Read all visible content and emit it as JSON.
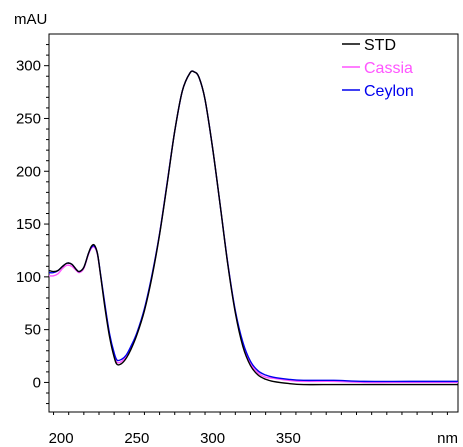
{
  "chart_data": {
    "type": "line",
    "title": "",
    "xlabel": "nm",
    "ylabel": "mAU",
    "xlim": [
      192,
      462
    ],
    "ylim": [
      -28,
      330
    ],
    "x_ticks": [
      200,
      250,
      300,
      350
    ],
    "y_ticks": [
      0,
      50,
      100,
      150,
      200,
      250,
      300
    ],
    "legend_position": "top-right",
    "grid": false,
    "series": [
      {
        "name": "STD",
        "color": "#000000",
        "points": [
          [
            192,
            106
          ],
          [
            195,
            105
          ],
          [
            198,
            106
          ],
          [
            201,
            110
          ],
          [
            204,
            113
          ],
          [
            207,
            112
          ],
          [
            210,
            107
          ],
          [
            212,
            105
          ],
          [
            215,
            109
          ],
          [
            218,
            122
          ],
          [
            220,
            129
          ],
          [
            222,
            130
          ],
          [
            224,
            122
          ],
          [
            226,
            102
          ],
          [
            229,
            70
          ],
          [
            232,
            43
          ],
          [
            235,
            24
          ],
          [
            237,
            17
          ],
          [
            240,
            18
          ],
          [
            243,
            23
          ],
          [
            246,
            31
          ],
          [
            250,
            45
          ],
          [
            255,
            68
          ],
          [
            260,
            100
          ],
          [
            265,
            140
          ],
          [
            270,
            188
          ],
          [
            275,
            238
          ],
          [
            280,
            276
          ],
          [
            285,
            293
          ],
          [
            288,
            294
          ],
          [
            291,
            289
          ],
          [
            295,
            268
          ],
          [
            300,
            222
          ],
          [
            305,
            168
          ],
          [
            310,
            112
          ],
          [
            315,
            66
          ],
          [
            320,
            34
          ],
          [
            325,
            16
          ],
          [
            330,
            7
          ],
          [
            335,
            3
          ],
          [
            340,
            1
          ],
          [
            350,
            -1
          ],
          [
            360,
            -2
          ],
          [
            380,
            -2
          ],
          [
            400,
            -2
          ],
          [
            430,
            -2
          ],
          [
            462,
            -2
          ]
        ]
      },
      {
        "name": "Cassia",
        "color": "#ff55ff",
        "points": [
          [
            192,
            101
          ],
          [
            195,
            101
          ],
          [
            198,
            103
          ],
          [
            201,
            108
          ],
          [
            204,
            111
          ],
          [
            207,
            110
          ],
          [
            210,
            106
          ],
          [
            212,
            104
          ],
          [
            215,
            108
          ],
          [
            218,
            121
          ],
          [
            220,
            127
          ],
          [
            222,
            128
          ],
          [
            224,
            121
          ],
          [
            226,
            102
          ],
          [
            229,
            72
          ],
          [
            232,
            45
          ],
          [
            235,
            26
          ],
          [
            237,
            19
          ],
          [
            240,
            20
          ],
          [
            243,
            25
          ],
          [
            246,
            33
          ],
          [
            250,
            46
          ],
          [
            255,
            69
          ],
          [
            260,
            101
          ],
          [
            265,
            141
          ],
          [
            270,
            189
          ],
          [
            275,
            238
          ],
          [
            280,
            276
          ],
          [
            285,
            293
          ],
          [
            288,
            294
          ],
          [
            291,
            289
          ],
          [
            295,
            268
          ],
          [
            300,
            222
          ],
          [
            305,
            168
          ],
          [
            310,
            113
          ],
          [
            315,
            67
          ],
          [
            320,
            36
          ],
          [
            325,
            18
          ],
          [
            330,
            9
          ],
          [
            335,
            5
          ],
          [
            340,
            4
          ],
          [
            350,
            2
          ],
          [
            360,
            1
          ],
          [
            380,
            1
          ],
          [
            400,
            0
          ],
          [
            430,
            0
          ],
          [
            462,
            0
          ]
        ]
      },
      {
        "name": "Ceylon",
        "color": "#0000ee",
        "points": [
          [
            192,
            104
          ],
          [
            195,
            104
          ],
          [
            198,
            106
          ],
          [
            201,
            110
          ],
          [
            204,
            113
          ],
          [
            207,
            112
          ],
          [
            210,
            107
          ],
          [
            212,
            105
          ],
          [
            215,
            109
          ],
          [
            218,
            122
          ],
          [
            220,
            128
          ],
          [
            222,
            129
          ],
          [
            224,
            122
          ],
          [
            226,
            103
          ],
          [
            229,
            73
          ],
          [
            232,
            46
          ],
          [
            235,
            28
          ],
          [
            237,
            21
          ],
          [
            240,
            22
          ],
          [
            243,
            26
          ],
          [
            246,
            34
          ],
          [
            250,
            47
          ],
          [
            255,
            70
          ],
          [
            260,
            102
          ],
          [
            265,
            141
          ],
          [
            270,
            189
          ],
          [
            275,
            238
          ],
          [
            280,
            276
          ],
          [
            285,
            293
          ],
          [
            288,
            294
          ],
          [
            291,
            289
          ],
          [
            295,
            268
          ],
          [
            300,
            222
          ],
          [
            305,
            168
          ],
          [
            310,
            113
          ],
          [
            315,
            68
          ],
          [
            320,
            38
          ],
          [
            325,
            20
          ],
          [
            330,
            11
          ],
          [
            335,
            7
          ],
          [
            340,
            5
          ],
          [
            350,
            3
          ],
          [
            360,
            2
          ],
          [
            380,
            2
          ],
          [
            400,
            1
          ],
          [
            430,
            1
          ],
          [
            462,
            1
          ]
        ]
      }
    ]
  }
}
